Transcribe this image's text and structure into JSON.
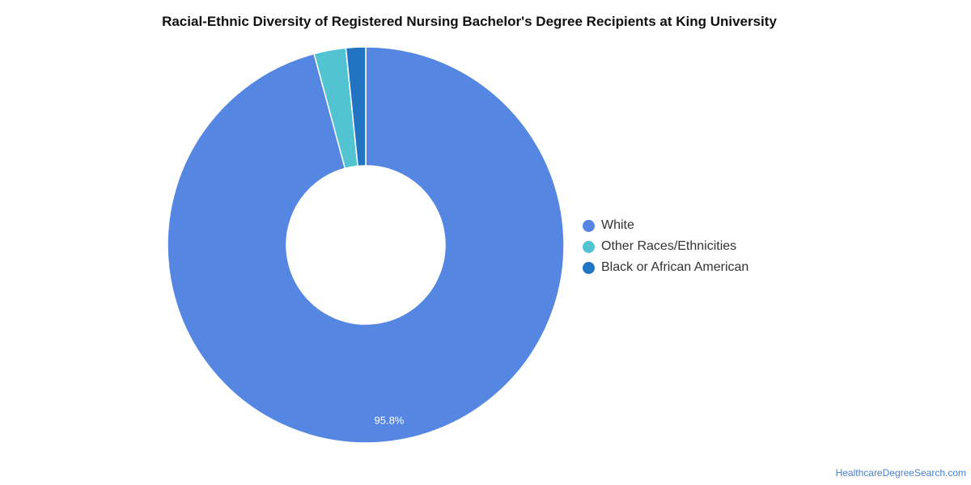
{
  "chart_data": {
    "type": "pie",
    "donut": true,
    "title": "Racial-Ethnic Diversity of Registered Nursing Bachelor's Degree Recipients at King University",
    "legend_position": "right",
    "slices": [
      {
        "name": "White",
        "value": 95.8,
        "color": "#5486e2",
        "label": "95.8%"
      },
      {
        "name": "Other Races/Ethnicities",
        "value": 2.6,
        "color": "#52c3d1",
        "label": ""
      },
      {
        "name": "Black or African American",
        "value": 1.6,
        "color": "#2174c2",
        "label": ""
      }
    ]
  },
  "footer": {
    "source": "HealthcareDegreeSearch.com"
  }
}
